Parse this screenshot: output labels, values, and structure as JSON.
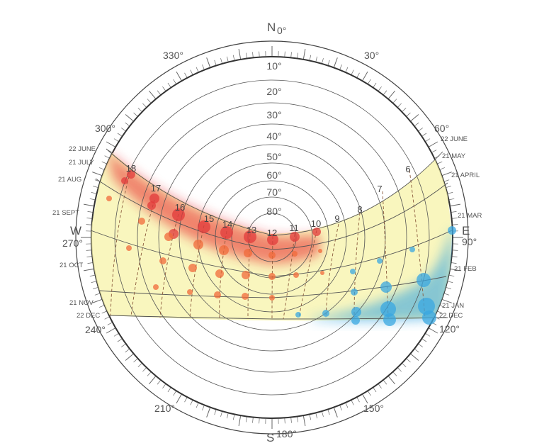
{
  "cardinals": {
    "north": "N",
    "south": "S",
    "east": "E",
    "west": "W"
  },
  "azimuth_labels": [
    "0°",
    "30°",
    "60°",
    "90°",
    "120°",
    "150°",
    "180°",
    "210°",
    "240°",
    "270°",
    "300°",
    "330°"
  ],
  "altitude_labels": [
    "10°",
    "20°",
    "30°",
    "40°",
    "50°",
    "60°",
    "70°",
    "80°"
  ],
  "date_labels_west": [
    "22 JUNE",
    "21 JULY",
    "21 AUG",
    "21 SEPT",
    "21 OCT",
    "21 NOV",
    "22 DEC"
  ],
  "date_labels_east": [
    "22 JUNE",
    "21 MAY",
    "21 APRIL",
    "21 MAR",
    "21 FEB",
    "21 JAN",
    "22 DEC"
  ],
  "hour_labels": [
    "6",
    "7",
    "8",
    "9",
    "10",
    "11",
    "12",
    "13",
    "14",
    "15",
    "16",
    "17",
    "18"
  ],
  "colors": {
    "hot": "#e8262a",
    "cold": "#3aa7e0",
    "band": "#f7f3a8",
    "grid": "#444444"
  }
}
